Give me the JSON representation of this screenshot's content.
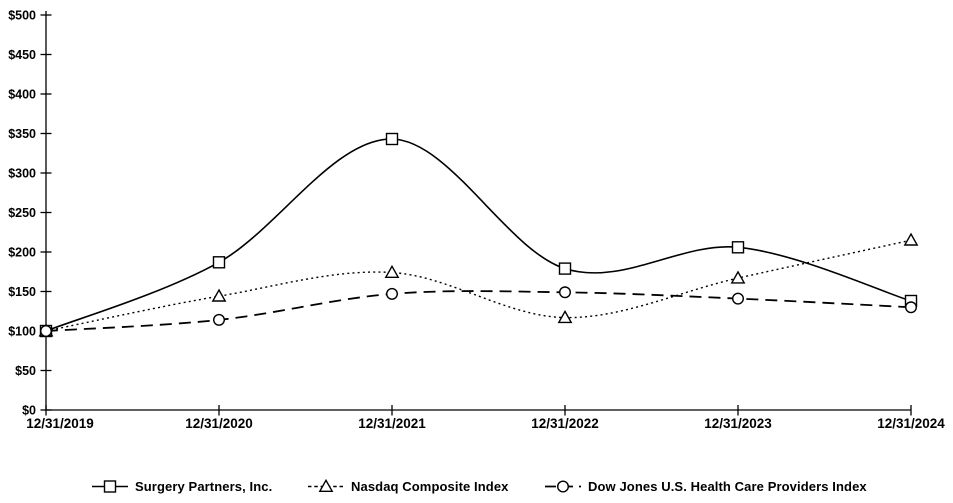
{
  "chart_data": {
    "type": "line",
    "title": "",
    "categories": [
      "12/31/2019",
      "12/31/2020",
      "12/31/2021",
      "12/31/2022",
      "12/31/2023",
      "12/31/2024"
    ],
    "series": [
      {
        "name": "Surgery Partners, Inc.",
        "marker": "square",
        "line_style": "solid",
        "values": [
          100,
          187,
          343,
          179,
          206,
          138
        ]
      },
      {
        "name": "Nasdaq Composite Index",
        "marker": "triangle",
        "line_style": "dotted",
        "values": [
          100,
          144,
          174,
          117,
          167,
          215
        ]
      },
      {
        "name": "Dow Jones U.S. Health Care Providers Index",
        "marker": "circle",
        "line_style": "dashed",
        "values": [
          100,
          114,
          147,
          149,
          141,
          130
        ]
      }
    ],
    "y_axis": {
      "min": 0,
      "max": 500,
      "step": 50,
      "prefix": "$",
      "tick_labels": [
        "$0",
        "$50",
        "$100",
        "$150",
        "$200",
        "$250",
        "$300",
        "$350",
        "$400",
        "$450",
        "$500"
      ]
    },
    "xlabel": "",
    "ylabel": "",
    "grid": false,
    "smoothed_lines": true,
    "legend_position": "bottom",
    "line_color": "#000000",
    "marker_fill": "#ffffff",
    "background": "#ffffff"
  }
}
